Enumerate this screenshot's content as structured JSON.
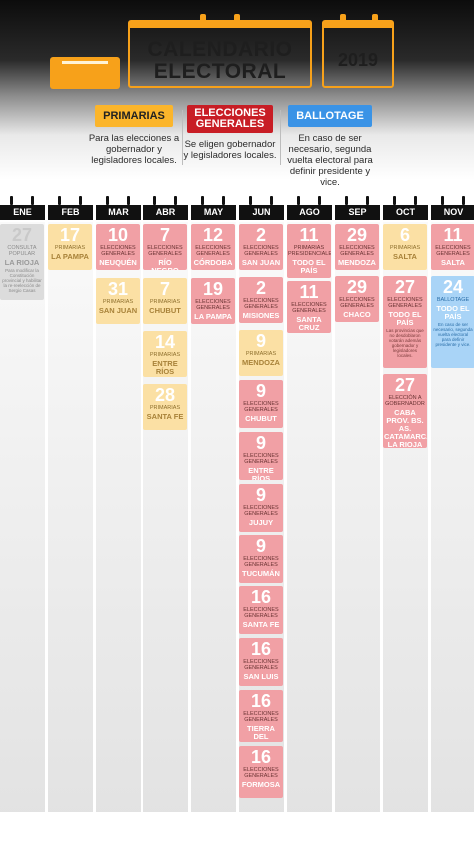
{
  "header": {
    "title_line1": "CALENDARIO",
    "title_line2": "ELECTORAL",
    "year": "2019"
  },
  "legend": {
    "primarias": {
      "label": "PRIMARIAS",
      "desc": "Para las elecciones a gobernador y legisladores locales."
    },
    "generales": {
      "label_l1": "ELECCIONES",
      "label_l2": "GENERALES",
      "desc": "Se eligen gobernador y legisladores locales."
    },
    "ballotage": {
      "label": "BALLOTAGE",
      "desc": "En caso de ser necesario, segunda vuelta electoral para definir presidente y vice."
    }
  },
  "colors": {
    "accent_orange": "#f7a11a",
    "primarias": "#fbe0a4",
    "generales": "#f1a0a5",
    "ballotage": "#a9d4f7",
    "void": "#dcdcdc"
  },
  "months": [
    "ENE",
    "FEB",
    "MAR",
    "ABR",
    "MAY",
    "JUN",
    "AGO",
    "SEP",
    "OCT",
    "NOV"
  ],
  "events": {
    "ene": [
      {
        "day": "27",
        "type": "CONSULTA POPULAR",
        "place": "LA RIOJA",
        "note": "Para modificar la Constitución provincial y habilitar la re-reelección de Sergio Casas"
      }
    ],
    "feb": [
      {
        "day": "17",
        "type": "PRIMARIAS",
        "place": "LA PAMPA"
      }
    ],
    "mar": [
      {
        "day": "10",
        "type": "ELECCIONES GENERALES",
        "place": "NEUQUÉN"
      },
      {
        "day": "31",
        "type": "PRIMARIAS",
        "place": "SAN JUAN"
      }
    ],
    "abr": [
      {
        "day": "7",
        "type": "ELECCIONES GENERALES",
        "place": "RÍO NEGRO"
      },
      {
        "day": "7",
        "type": "PRIMARIAS",
        "place": "CHUBUT"
      },
      {
        "day": "14",
        "type": "PRIMARIAS",
        "place": "ENTRE RÍOS"
      },
      {
        "day": "28",
        "type": "PRIMARIAS",
        "place": "SANTA FE"
      }
    ],
    "may": [
      {
        "day": "12",
        "type": "ELECCIONES GENERALES",
        "place": "CÓRDOBA"
      },
      {
        "day": "19",
        "type": "ELECCIONES GENERALES",
        "place": "LA PAMPA"
      }
    ],
    "jun": [
      {
        "day": "2",
        "type": "ELECCIONES GENERALES",
        "place": "SAN JUAN"
      },
      {
        "day": "2",
        "type": "ELECCIONES GENERALES",
        "place": "MISIONES"
      },
      {
        "day": "9",
        "type": "PRIMARIAS",
        "place": "MENDOZA"
      },
      {
        "day": "9",
        "type": "ELECCIONES GENERALES",
        "place": "CHUBUT"
      },
      {
        "day": "9",
        "type": "ELECCIONES GENERALES",
        "place": "ENTRE RÍOS"
      },
      {
        "day": "9",
        "type": "ELECCIONES GENERALES",
        "place": "JUJUY"
      },
      {
        "day": "9",
        "type": "ELECCIONES GENERALES",
        "place": "TUCUMÁN"
      },
      {
        "day": "16",
        "type": "ELECCIONES GENERALES",
        "place": "SANTA FE"
      },
      {
        "day": "16",
        "type": "ELECCIONES GENERALES",
        "place": "SAN LUIS"
      },
      {
        "day": "16",
        "type": "ELECCIONES GENERALES",
        "place": "TIERRA DEL FUEGO"
      },
      {
        "day": "16",
        "type": "ELECCIONES GENERALES",
        "place": "FORMOSA"
      }
    ],
    "ago": [
      {
        "day": "11",
        "type": "PRIMARIAS PRESIDENCIALES",
        "place": "TODO EL PAÍS"
      },
      {
        "day": "11",
        "type": "ELECCIONES GENERALES",
        "place": "SANTA CRUZ"
      }
    ],
    "sep": [
      {
        "day": "29",
        "type": "ELECCIONES GENERALES",
        "place": "MENDOZA"
      },
      {
        "day": "29",
        "type": "ELECCIONES GENERALES",
        "place": "CHACO"
      }
    ],
    "oct": [
      {
        "day": "6",
        "type": "PRIMARIAS",
        "place": "SALTA"
      },
      {
        "day": "27",
        "type": "ELECCIONES GENERALES",
        "place": "TODO EL PAÍS",
        "note": "Las provincias que no desdoblaron votarán además gobernador y legisladores locales."
      },
      {
        "day": "27",
        "type": "ELECCIÓN A GOBERNADOR",
        "place": "CABA PROV. BS. AS. CATAMARCA LA RIOJA"
      }
    ],
    "nov": [
      {
        "day": "11",
        "type": "ELECCIONES GENERALES",
        "place": "SALTA"
      },
      {
        "day": "24",
        "type": "BALLOTAGE",
        "place": "TODO EL PAÍS",
        "note": "En caso de ser necesario, segunda vuelta electoral para definir presidente y vice."
      }
    ]
  }
}
